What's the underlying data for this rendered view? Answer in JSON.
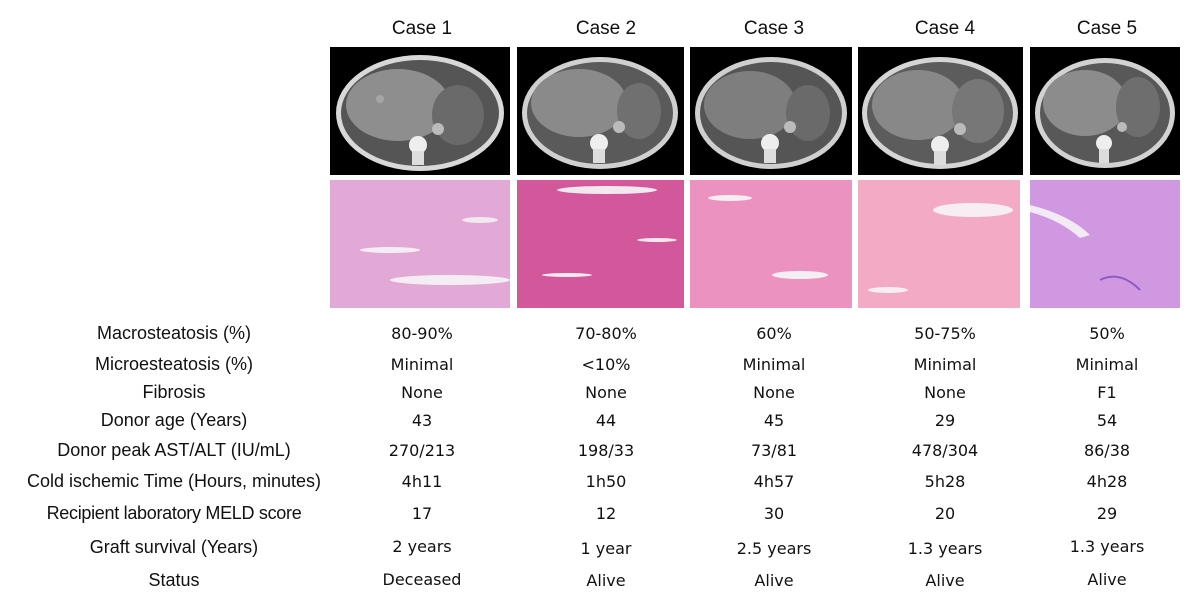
{
  "cases": [
    "Case 1",
    "Case 2",
    "Case 3",
    "Case 4",
    "Case 5"
  ],
  "images": {
    "ct_scan": "abdominal-ct-icon",
    "histology": "liver-histology-he-stain-icon"
  },
  "rows": [
    {
      "label": "Macrosteatosis (%)",
      "values": [
        "80-90%",
        "70-80%",
        "60%",
        "50-75%",
        "50%"
      ]
    },
    {
      "label": "Microesteatosis (%)",
      "values": [
        "Minimal",
        "<10%",
        "Minimal",
        "Minimal",
        "Minimal"
      ]
    },
    {
      "label": "Fibrosis",
      "values": [
        "None",
        "None",
        "None",
        "None",
        "F1"
      ]
    },
    {
      "label": "Donor age (Years)",
      "values": [
        "43",
        "44",
        "45",
        "29",
        "54"
      ]
    },
    {
      "label": "Donor peak AST/ALT (IU/mL)",
      "values": [
        "270/213",
        "198/33",
        "73/81",
        "478/304",
        "86/38"
      ]
    },
    {
      "label": "Cold ischemic Time (Hours, minutes)",
      "values": [
        "4h11",
        "1h50",
        "4h57",
        "5h28",
        "4h28"
      ]
    },
    {
      "label": "Recipient laboratory MELD score",
      "values": [
        "17",
        "12",
        "30",
        "20",
        "29"
      ]
    },
    {
      "label": "Graft survival (Years)",
      "values": [
        "2 years",
        "1 year",
        "2.5 years",
        "1.3 years",
        "1.3 years"
      ]
    },
    {
      "label": "Status",
      "values": [
        "Deceased",
        "Alive",
        "Alive",
        "Alive",
        "Alive"
      ]
    }
  ],
  "colors": {
    "ct_background": "#000000",
    "histology_pink": "#e58fb8",
    "histology_purple": "#c48ad8"
  }
}
